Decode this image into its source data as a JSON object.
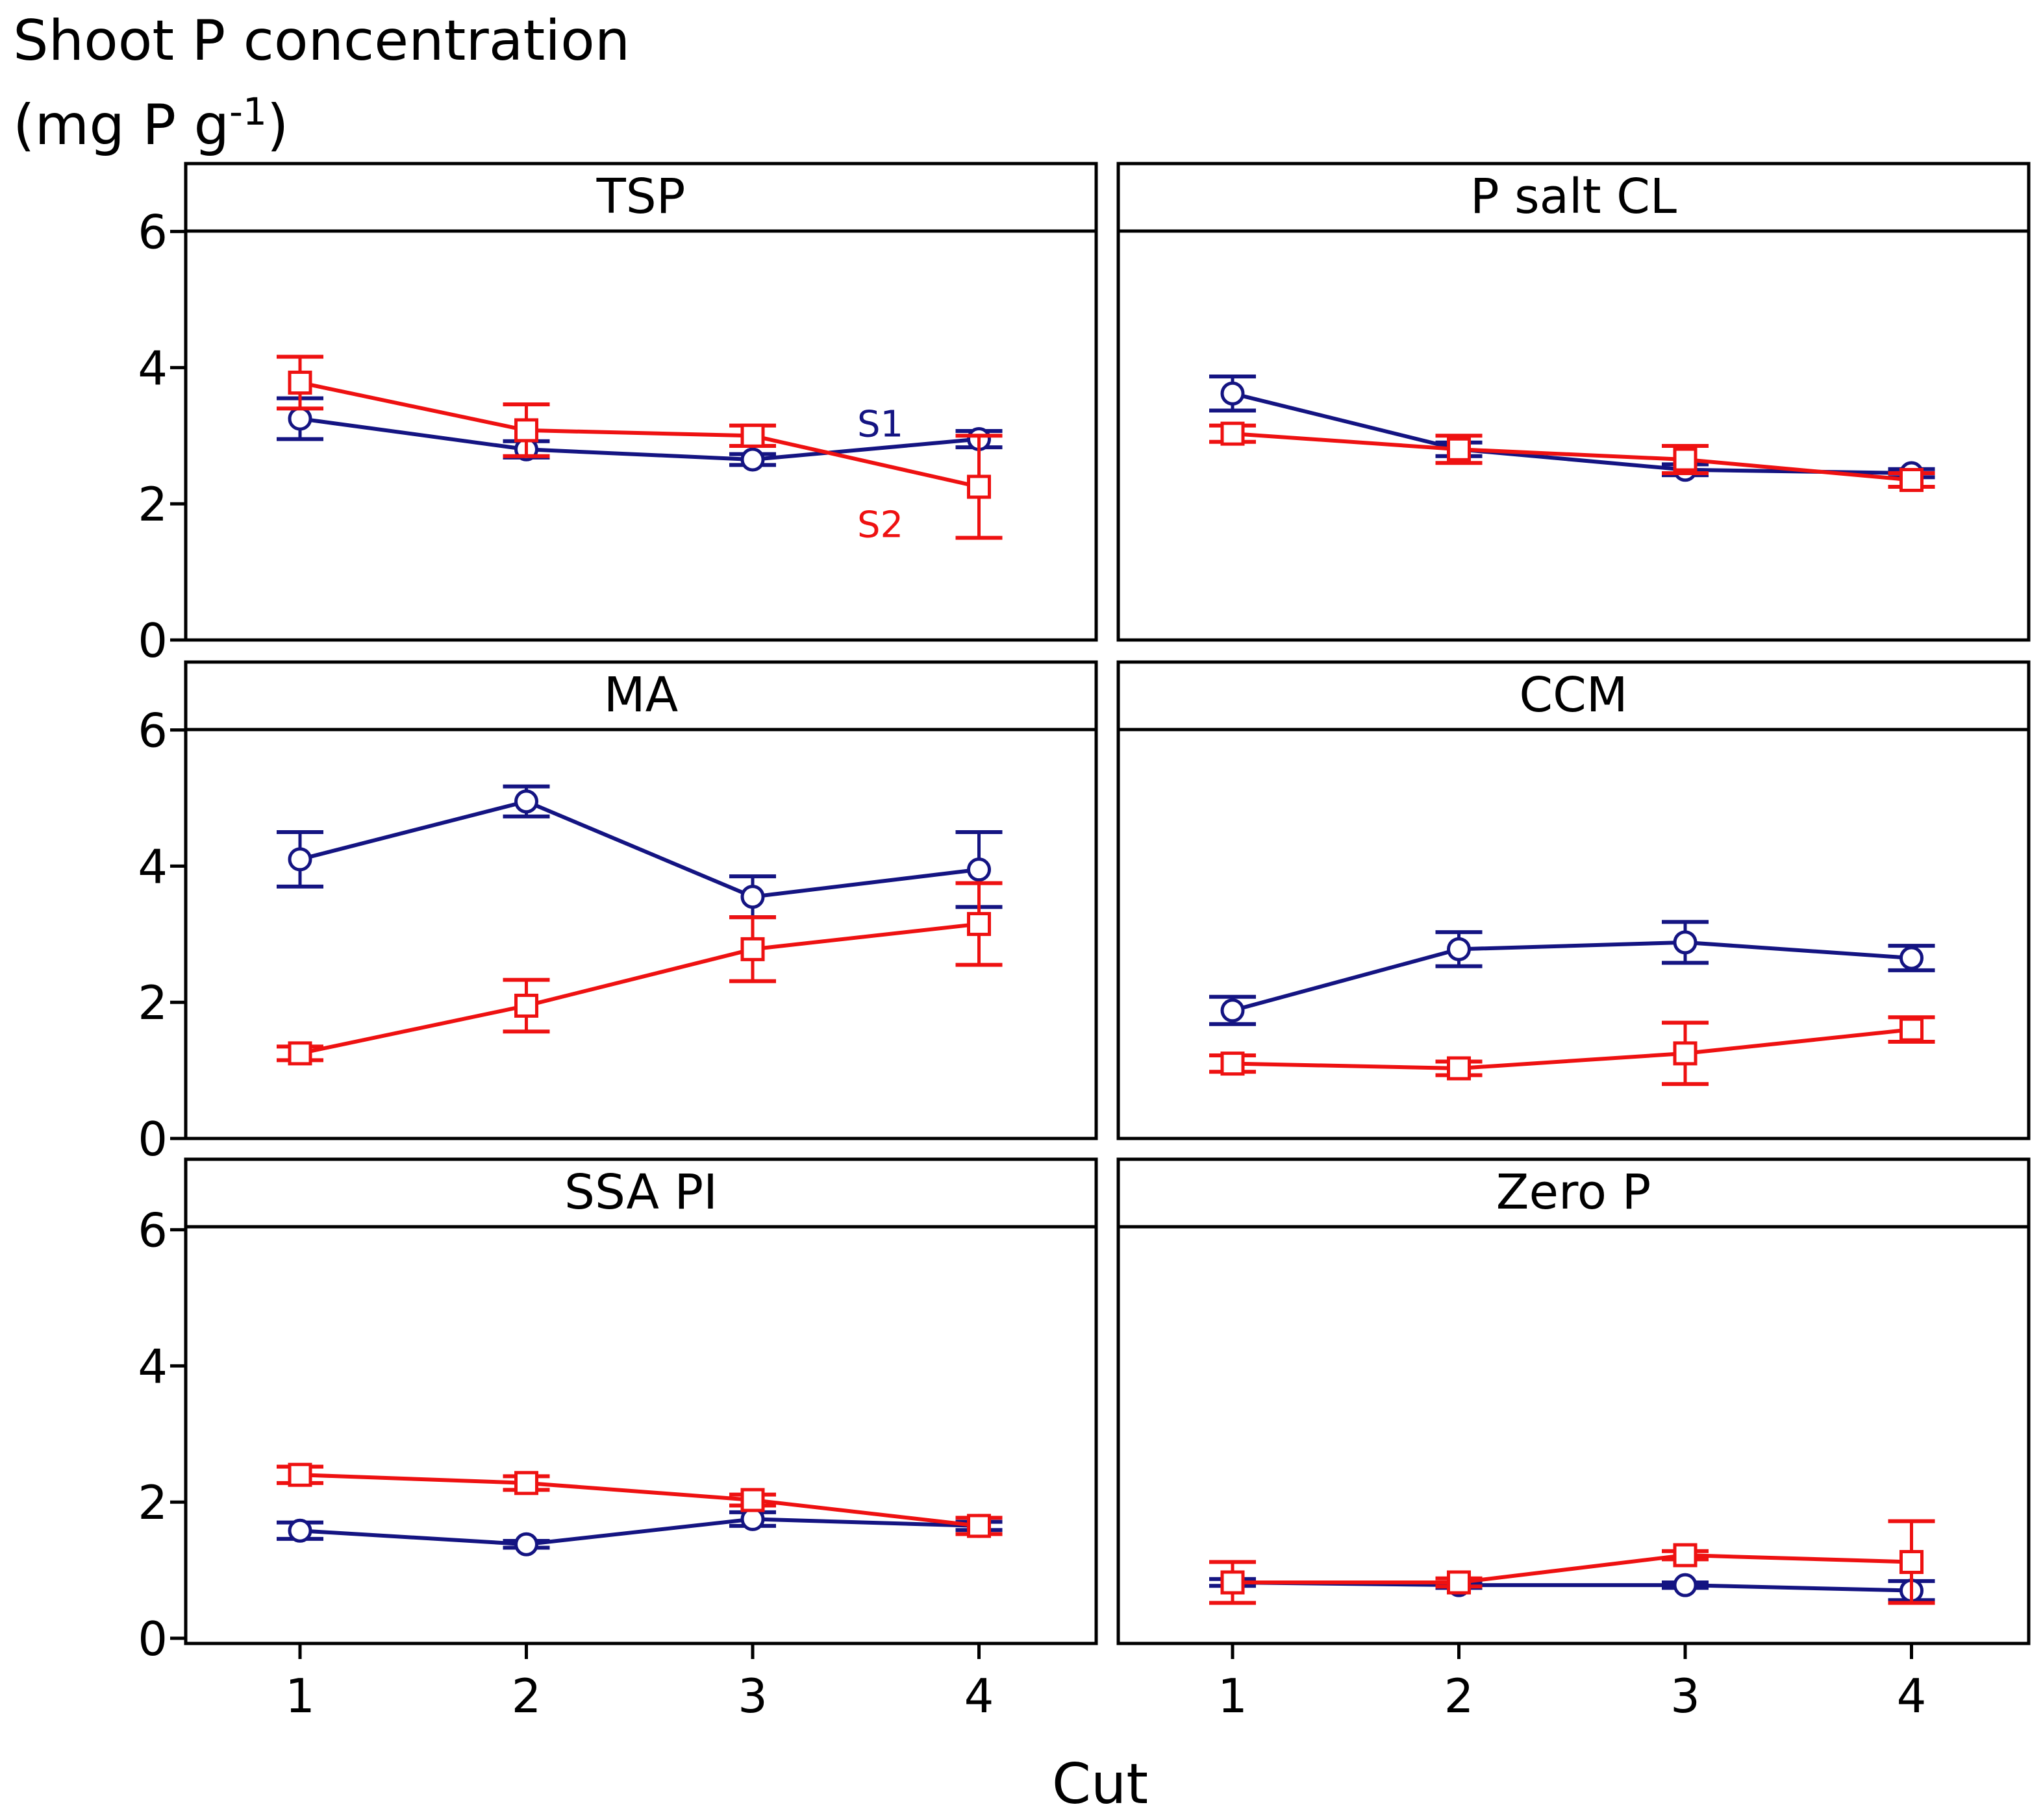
{
  "chart_data": {
    "type": "line",
    "y_title": "Shoot P concentration",
    "y_units_pre": "(mg P g",
    "y_units_sup": "-1",
    "y_units_post": ")",
    "x_title": "Cut",
    "x_ticks": [
      "1",
      "2",
      "3",
      "4"
    ],
    "y_ticks": [
      "0",
      "2",
      "4",
      "6"
    ],
    "ylim": [
      0,
      7
    ],
    "colors": {
      "S1": "#141482",
      "S2": "#ee1111"
    },
    "series_names": [
      "S1",
      "S2"
    ],
    "panels": [
      {
        "title": "TSP",
        "series": [
          {
            "name": "S1",
            "x": [
              1,
              2,
              3,
              4
            ],
            "values": [
              3.25,
              2.8,
              2.65,
              2.95
            ],
            "errors": [
              0.3,
              0.12,
              0.08,
              0.12
            ]
          },
          {
            "name": "S2",
            "x": [
              1,
              2,
              3,
              4
            ],
            "values": [
              3.78,
              3.08,
              3.0,
              2.25
            ],
            "errors": [
              0.38,
              0.38,
              0.15,
              0.75
            ]
          }
        ],
        "annotations": [
          {
            "text": "S1",
            "series": "S1"
          },
          {
            "text": "S2",
            "series": "S2"
          }
        ]
      },
      {
        "title": "P salt CL",
        "series": [
          {
            "name": "S1",
            "x": [
              1,
              2,
              3,
              4
            ],
            "values": [
              3.62,
              2.8,
              2.5,
              2.45
            ],
            "errors": [
              0.25,
              0.1,
              0.08,
              0.06
            ]
          },
          {
            "name": "S2",
            "x": [
              1,
              2,
              3,
              4
            ],
            "values": [
              3.03,
              2.8,
              2.65,
              2.35
            ],
            "errors": [
              0.12,
              0.2,
              0.2,
              0.1
            ]
          }
        ]
      },
      {
        "title": "MA",
        "series": [
          {
            "name": "S1",
            "x": [
              1,
              2,
              3,
              4
            ],
            "values": [
              4.1,
              4.95,
              3.55,
              3.95
            ],
            "errors": [
              0.4,
              0.22,
              0.3,
              0.55
            ]
          },
          {
            "name": "S2",
            "x": [
              1,
              2,
              3,
              4
            ],
            "values": [
              1.25,
              1.95,
              2.78,
              3.15
            ],
            "errors": [
              0.1,
              0.38,
              0.47,
              0.6
            ]
          }
        ]
      },
      {
        "title": "CCM",
        "series": [
          {
            "name": "S1",
            "x": [
              1,
              2,
              3,
              4
            ],
            "values": [
              1.88,
              2.78,
              2.88,
              2.65
            ],
            "errors": [
              0.2,
              0.25,
              0.3,
              0.18
            ]
          },
          {
            "name": "S2",
            "x": [
              1,
              2,
              3,
              4
            ],
            "values": [
              1.1,
              1.03,
              1.25,
              1.6
            ],
            "errors": [
              0.12,
              0.1,
              0.45,
              0.18
            ]
          }
        ]
      },
      {
        "title": "SSA PI",
        "series": [
          {
            "name": "S1",
            "x": [
              1,
              2,
              3,
              4
            ],
            "values": [
              1.58,
              1.38,
              1.75,
              1.65
            ],
            "errors": [
              0.12,
              0.05,
              0.1,
              0.06
            ]
          },
          {
            "name": "S2",
            "x": [
              1,
              2,
              3,
              4
            ],
            "values": [
              2.4,
              2.28,
              2.03,
              1.65
            ],
            "errors": [
              0.12,
              0.1,
              0.08,
              0.12
            ]
          }
        ]
      },
      {
        "title": "Zero P",
        "series": [
          {
            "name": "S1",
            "x": [
              1,
              2,
              3,
              4
            ],
            "values": [
              0.82,
              0.78,
              0.78,
              0.7
            ],
            "errors": [
              0.05,
              0.04,
              0.04,
              0.14
            ]
          },
          {
            "name": "S2",
            "x": [
              1,
              2,
              3,
              4
            ],
            "values": [
              0.82,
              0.82,
              1.22,
              1.12
            ],
            "errors": [
              0.3,
              0.06,
              0.06,
              0.6
            ]
          }
        ]
      }
    ]
  }
}
